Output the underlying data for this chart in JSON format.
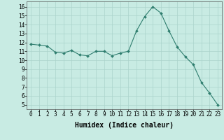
{
  "x": [
    0,
    1,
    2,
    3,
    4,
    5,
    6,
    7,
    8,
    9,
    10,
    11,
    12,
    13,
    14,
    15,
    16,
    17,
    18,
    19,
    20,
    21,
    22,
    23
  ],
  "y": [
    11.8,
    11.7,
    11.6,
    10.9,
    10.8,
    11.1,
    10.6,
    10.5,
    11.0,
    11.0,
    10.5,
    10.8,
    11.0,
    13.3,
    14.9,
    16.0,
    15.3,
    13.3,
    11.5,
    10.4,
    9.5,
    7.5,
    6.3,
    5.0
  ],
  "xlabel": "Humidex (Indice chaleur)",
  "ylim": [
    4.5,
    16.6
  ],
  "yticks": [
    5,
    6,
    7,
    8,
    9,
    10,
    11,
    12,
    13,
    14,
    15,
    16
  ],
  "xticks": [
    0,
    1,
    2,
    3,
    4,
    5,
    6,
    7,
    8,
    9,
    10,
    11,
    12,
    13,
    14,
    15,
    16,
    17,
    18,
    19,
    20,
    21,
    22,
    23
  ],
  "line_color": "#2e7d6e",
  "marker_color": "#2e7d6e",
  "bg_color": "#c8ebe3",
  "grid_color": "#aad4cc",
  "tick_label_fontsize": 5.5,
  "xlabel_fontsize": 7.0,
  "marker_size": 2.0,
  "xlim": [
    -0.5,
    23.5
  ]
}
